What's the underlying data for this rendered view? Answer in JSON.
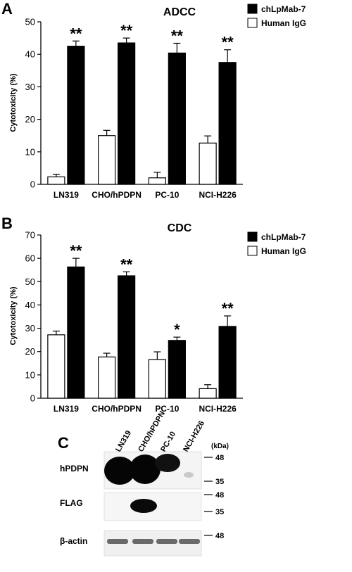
{
  "chart_data": [
    {
      "panel": "A",
      "type": "bar",
      "title": "ADCC",
      "ylabel": "Cytotoxicity (%)",
      "xlabel": "",
      "ylim": [
        0,
        50
      ],
      "yticks": [
        0,
        10,
        20,
        30,
        40,
        50
      ],
      "categories": [
        "LN319",
        "CHO/hPDPN",
        "PC-10",
        "NCI-H226"
      ],
      "legend_position": "top-right",
      "grid": false,
      "series": [
        {
          "name": "Human IgG",
          "fill": "#ffffff",
          "values": [
            2.3,
            15.0,
            2.0,
            12.7
          ],
          "errors": [
            0.8,
            1.6,
            1.7,
            2.2
          ],
          "stars": [
            "",
            "",
            "",
            ""
          ]
        },
        {
          "name": "chLpMab-7",
          "fill": "#000000",
          "values": [
            42.5,
            43.5,
            40.4,
            37.5
          ],
          "errors": [
            1.6,
            1.5,
            3.0,
            3.9
          ],
          "stars": [
            "**",
            "**",
            "**",
            "**"
          ]
        }
      ]
    },
    {
      "panel": "B",
      "type": "bar",
      "title": "CDC",
      "ylabel": "Cytotoxicity (%)",
      "xlabel": "",
      "ylim": [
        0,
        70
      ],
      "yticks": [
        0,
        10,
        20,
        30,
        40,
        50,
        60,
        70
      ],
      "categories": [
        "LN319",
        "CHO/hPDPN",
        "PC-10",
        "NCI-H226"
      ],
      "legend_position": "top-right",
      "grid": false,
      "series": [
        {
          "name": "Human IgG",
          "fill": "#ffffff",
          "values": [
            27.2,
            17.7,
            16.6,
            4.1
          ],
          "errors": [
            1.6,
            1.6,
            3.3,
            1.7
          ],
          "stars": [
            "",
            "",
            "",
            ""
          ]
        },
        {
          "name": "chLpMab-7",
          "fill": "#000000",
          "values": [
            56.3,
            52.5,
            24.8,
            30.8
          ],
          "errors": [
            3.7,
            1.7,
            1.4,
            4.5
          ],
          "stars": [
            "**",
            "**",
            "*",
            "**"
          ]
        }
      ]
    }
  ],
  "blot": {
    "panel": "C",
    "lanes": [
      "LN319",
      "CHO/hPDPN",
      "PC-10",
      "NCI-H226"
    ],
    "unit": "(kDa)",
    "rows": [
      {
        "label": "hPDPN",
        "markers": [
          "48",
          "35"
        ]
      },
      {
        "label": "FLAG",
        "markers": [
          "48",
          "35"
        ]
      },
      {
        "label": "β-actin",
        "markers": [
          "48"
        ]
      }
    ]
  }
}
